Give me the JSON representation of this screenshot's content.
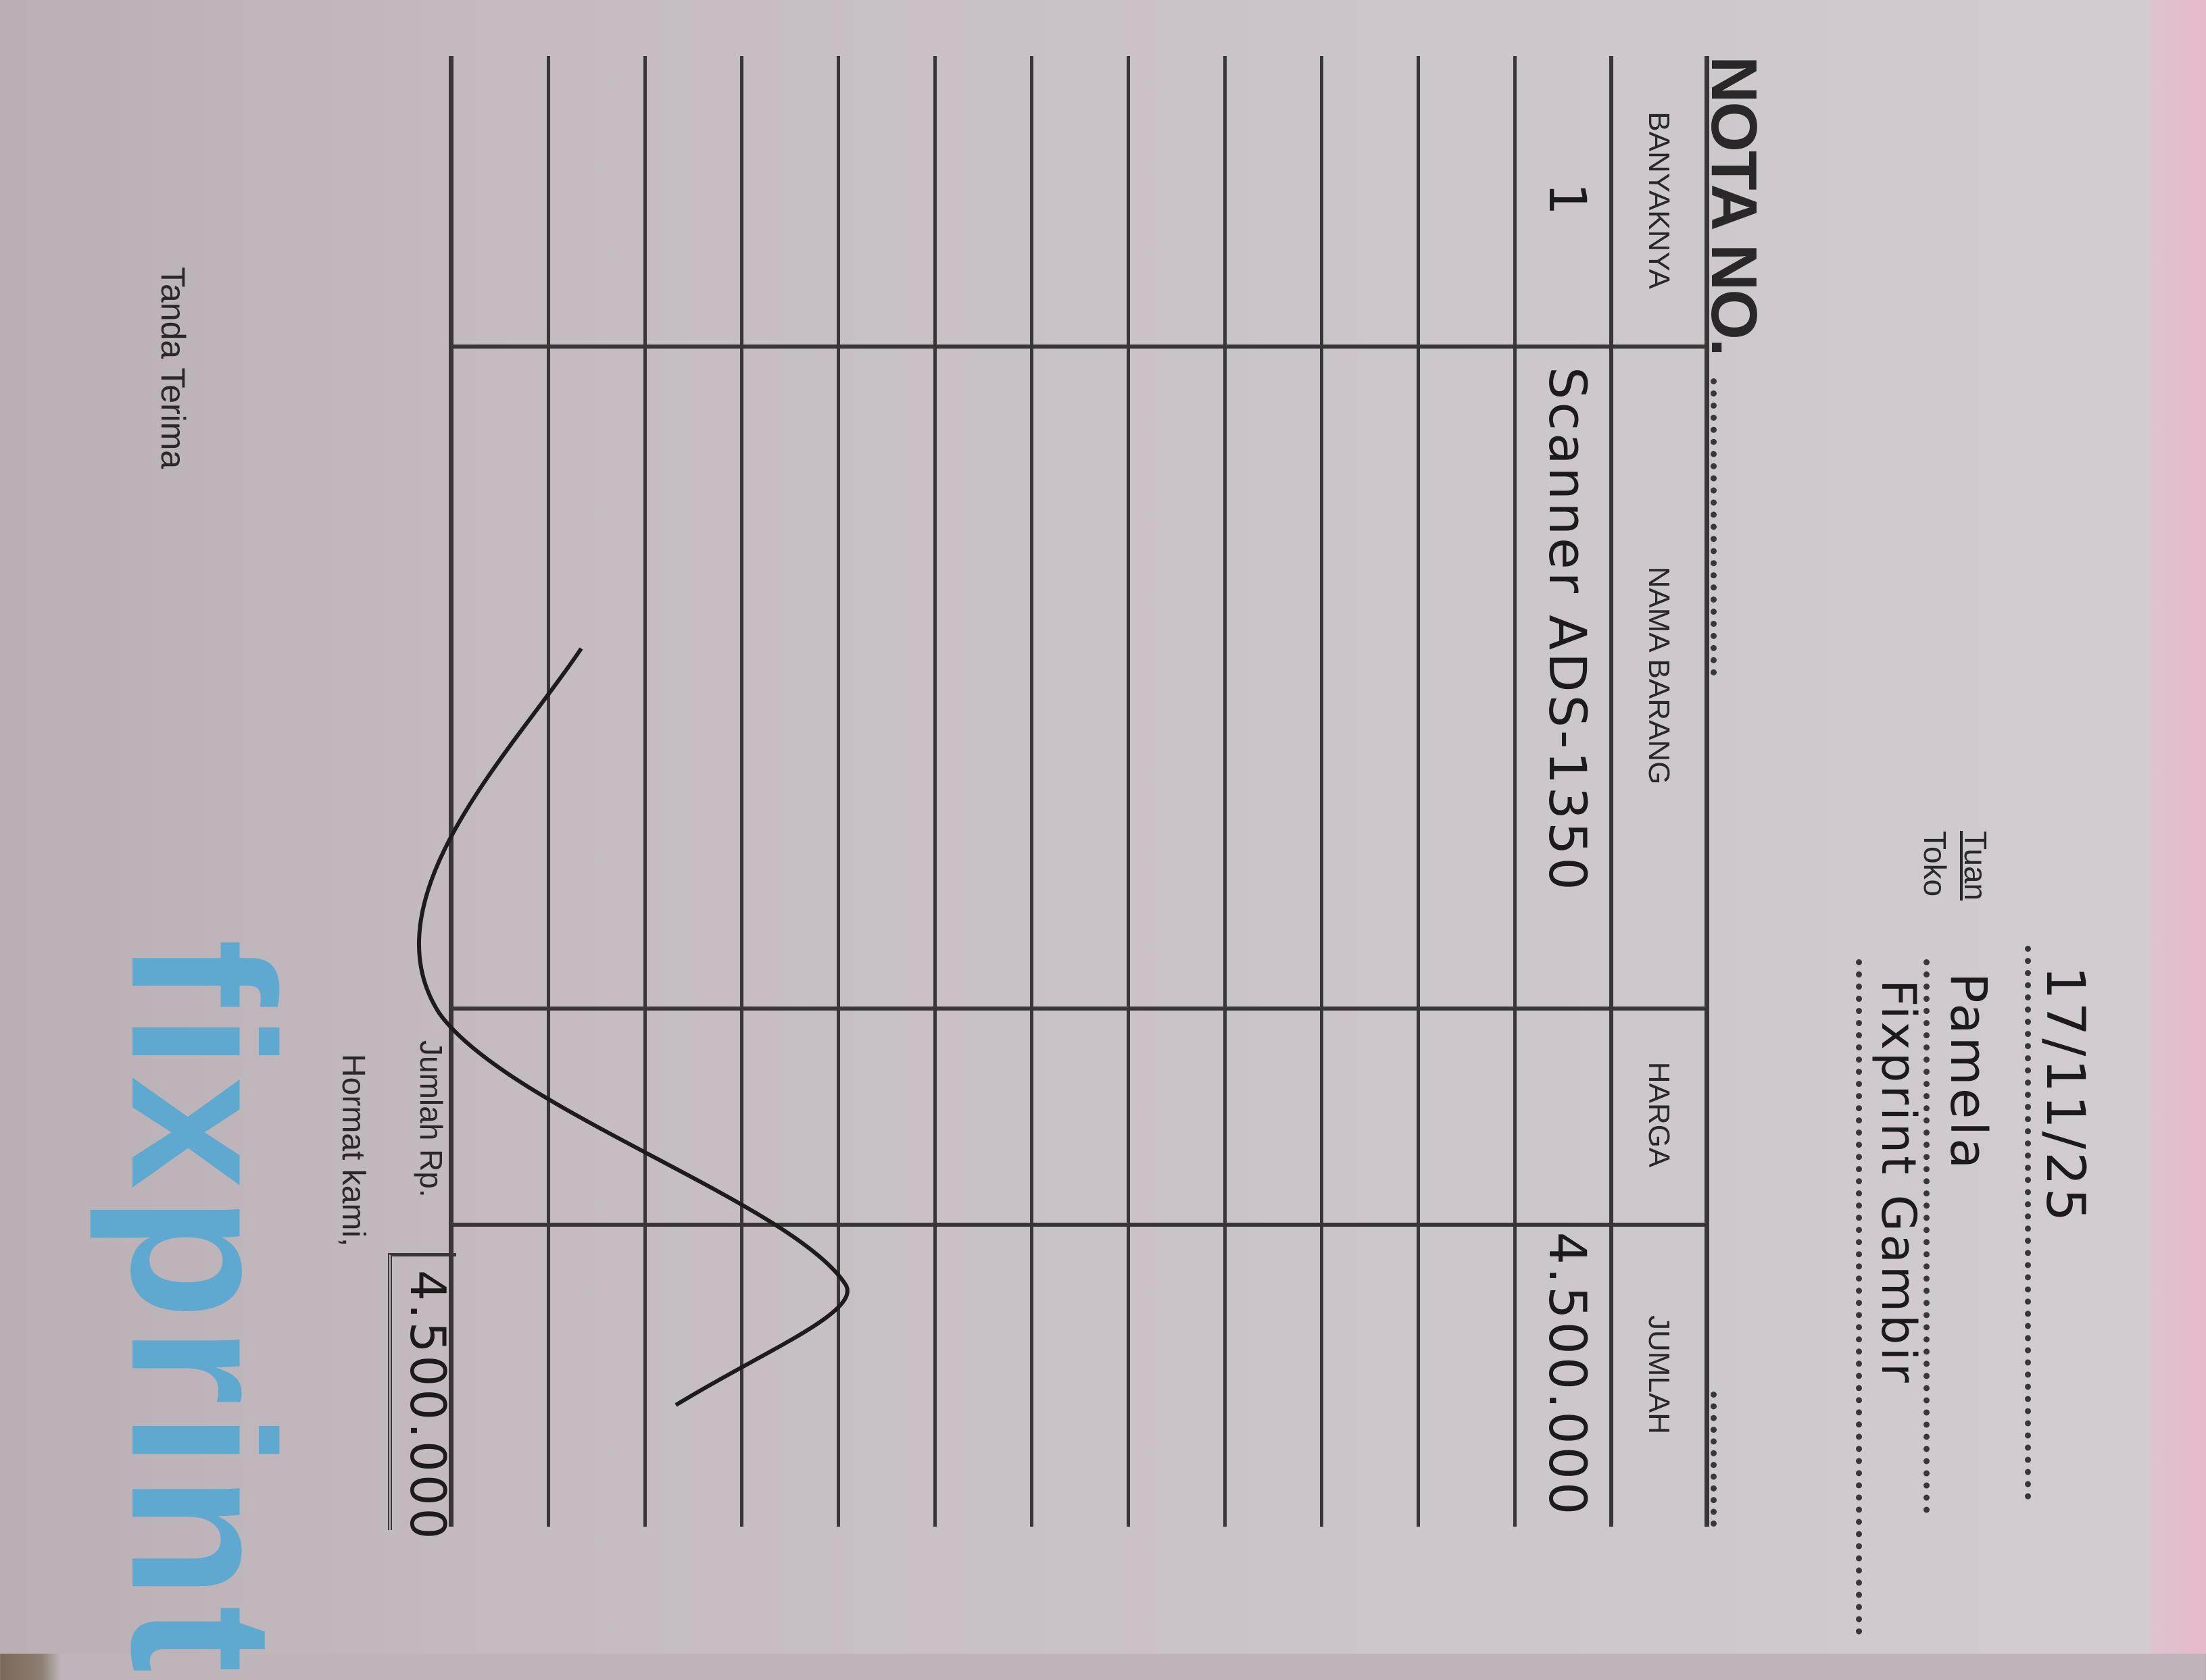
{
  "header": {
    "nota_label": "NOTA NO.",
    "date": "17/11/25",
    "tuan_label": "Tuan",
    "toko_label": "Toko",
    "customer": "Pamela",
    "store": "Fixprint Gambir"
  },
  "table": {
    "columns": [
      "BANYAKNYA",
      "NAMA BARANG",
      "HARGA",
      "JUMLAH"
    ],
    "rows": [
      {
        "qty": "1",
        "item": "Scanner ADS-1350",
        "price": "",
        "amount": "4.500.000"
      }
    ]
  },
  "footer": {
    "total_label": "Jumlah Rp.",
    "total": "4.500.000",
    "closing": "Hormat kami,",
    "receiver": "Tanda Terima",
    "logo_text": "fixprint"
  },
  "colors": {
    "ink": "#2b2729",
    "paper": "#cbc4c8",
    "logo": "#5fa8cf",
    "carbon_copy": "#e8b8cc"
  }
}
